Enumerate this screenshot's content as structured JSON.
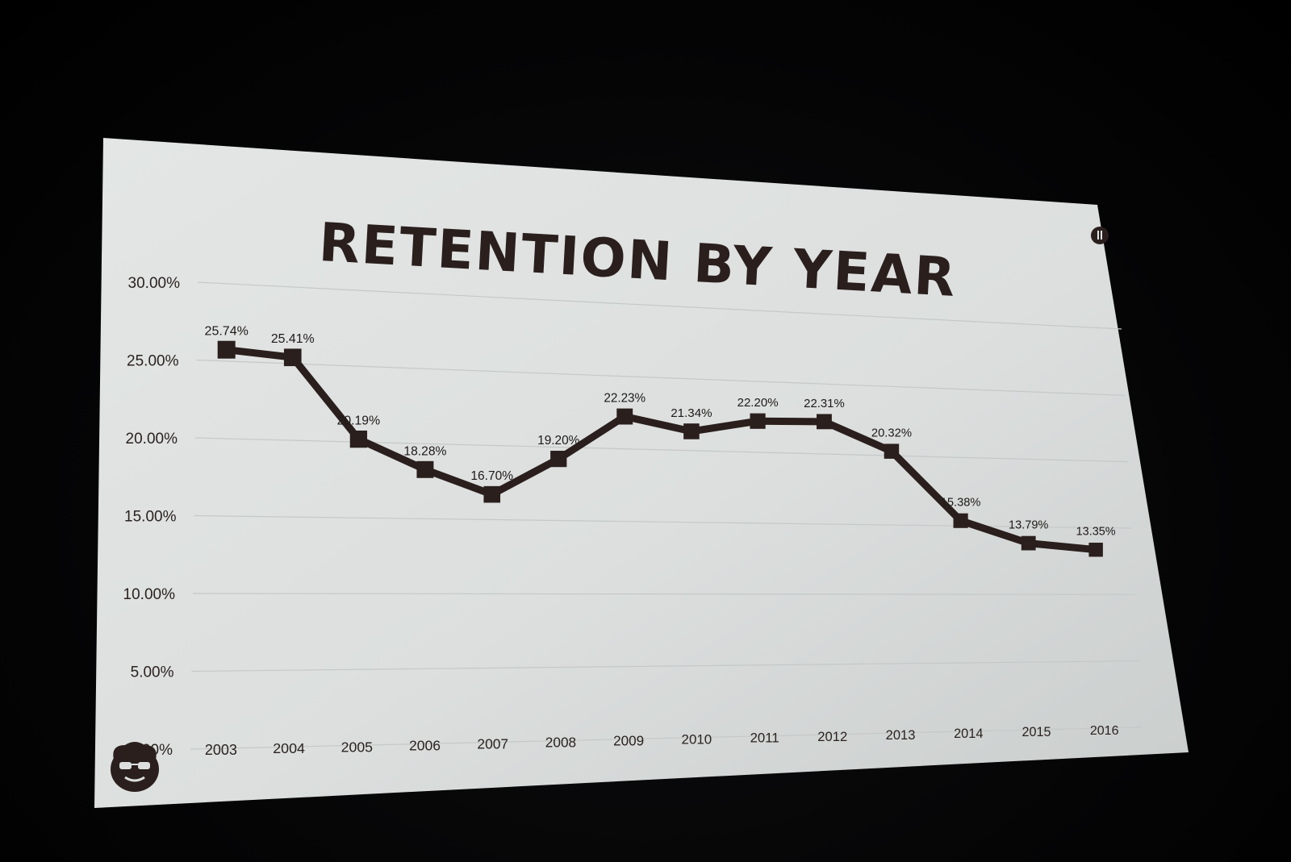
{
  "slide": {
    "title": "RETENTION BY YEAR",
    "background_color": "#dfe2e1",
    "line_color": "#2a1f1d"
  },
  "chart_data": {
    "type": "line",
    "title": "RETENTION BY YEAR",
    "xlabel": "",
    "ylabel": "",
    "categories": [
      "2003",
      "2004",
      "2005",
      "2006",
      "2007",
      "2008",
      "2009",
      "2010",
      "2011",
      "2012",
      "2013",
      "2014",
      "2015",
      "2016"
    ],
    "series": [
      {
        "values": [
          25.74,
          25.41,
          20.19,
          18.28,
          16.7,
          19.2,
          22.23,
          21.34,
          22.2,
          22.31,
          20.32,
          15.38,
          13.79,
          13.35
        ],
        "data_labels": [
          "25.74%",
          "25.41%",
          "20.19%",
          "18.28%",
          "16.70%",
          "19.20%",
          "22.23%",
          "21.34%",
          "22.20%",
          "22.31%",
          "20.32%",
          "15.38%",
          "13.79%",
          "13.35%"
        ]
      }
    ],
    "ylim": [
      0,
      30
    ],
    "y_ticks": [
      0,
      5,
      10,
      15,
      20,
      25,
      30
    ],
    "y_tick_labels": [
      "0.00%",
      "5.00%",
      "10.00%",
      "15.00%",
      "20.00%",
      "25.00%",
      "30.00%"
    ],
    "grid": true,
    "legend": "none",
    "marker": "square"
  },
  "icons": {
    "top_right": "round-badge-icon",
    "bottom_left": "bearded-face-logo"
  }
}
